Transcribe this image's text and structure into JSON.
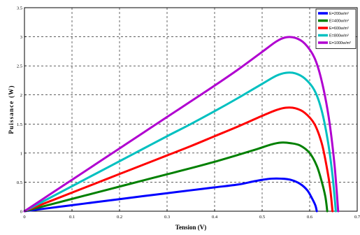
{
  "chart_data": {
    "type": "line",
    "title": "",
    "xlabel": "Tension (V)",
    "ylabel": "Puissance (W)",
    "xlim": [
      0,
      0.7
    ],
    "ylim": [
      0,
      3.5
    ],
    "xticks": [
      "0",
      "0.1",
      "0.2",
      "0.3",
      "0.4",
      "0.5",
      "0.6",
      "0.7"
    ],
    "yticks": [
      "0",
      "0.5",
      "1",
      "1.5",
      "2",
      "2.5",
      "3",
      "3.5"
    ],
    "grid": true,
    "grid_style": "dashed",
    "legend_position": "top-right",
    "series": [
      {
        "name": "E=200w/m²",
        "color": "#0000ff",
        "points": [
          [
            0,
            0
          ],
          [
            0.05,
            0.052
          ],
          [
            0.1,
            0.104
          ],
          [
            0.15,
            0.156
          ],
          [
            0.2,
            0.208
          ],
          [
            0.25,
            0.26
          ],
          [
            0.3,
            0.31
          ],
          [
            0.35,
            0.36
          ],
          [
            0.4,
            0.41
          ],
          [
            0.45,
            0.46
          ],
          [
            0.48,
            0.51
          ],
          [
            0.5,
            0.54
          ],
          [
            0.52,
            0.56
          ],
          [
            0.54,
            0.56
          ],
          [
            0.56,
            0.54
          ],
          [
            0.58,
            0.47
          ],
          [
            0.595,
            0.36
          ],
          [
            0.605,
            0.22
          ],
          [
            0.612,
            0.1
          ],
          [
            0.615,
            0
          ]
        ]
      },
      {
        "name": "E=400w/m²",
        "color": "#008000",
        "points": [
          [
            0,
            0
          ],
          [
            0.05,
            0.106
          ],
          [
            0.1,
            0.212
          ],
          [
            0.15,
            0.318
          ],
          [
            0.2,
            0.424
          ],
          [
            0.25,
            0.53
          ],
          [
            0.3,
            0.635
          ],
          [
            0.35,
            0.74
          ],
          [
            0.4,
            0.85
          ],
          [
            0.45,
            0.97
          ],
          [
            0.49,
            1.07
          ],
          [
            0.52,
            1.15
          ],
          [
            0.54,
            1.18
          ],
          [
            0.56,
            1.17
          ],
          [
            0.58,
            1.13
          ],
          [
            0.6,
            1.0
          ],
          [
            0.615,
            0.78
          ],
          [
            0.625,
            0.52
          ],
          [
            0.633,
            0.25
          ],
          [
            0.637,
            0
          ]
        ]
      },
      {
        "name": "E=600w/m²",
        "color": "#ff0000",
        "points": [
          [
            0,
            0
          ],
          [
            0.05,
            0.16
          ],
          [
            0.1,
            0.32
          ],
          [
            0.15,
            0.48
          ],
          [
            0.2,
            0.64
          ],
          [
            0.25,
            0.8
          ],
          [
            0.3,
            0.96
          ],
          [
            0.35,
            1.12
          ],
          [
            0.4,
            1.29
          ],
          [
            0.45,
            1.46
          ],
          [
            0.5,
            1.64
          ],
          [
            0.53,
            1.74
          ],
          [
            0.55,
            1.78
          ],
          [
            0.57,
            1.77
          ],
          [
            0.59,
            1.69
          ],
          [
            0.61,
            1.5
          ],
          [
            0.625,
            1.18
          ],
          [
            0.635,
            0.8
          ],
          [
            0.643,
            0.4
          ],
          [
            0.648,
            0
          ]
        ]
      },
      {
        "name": "E=800w/m²",
        "color": "#00c0c0",
        "points": [
          [
            0,
            0
          ],
          [
            0.05,
            0.215
          ],
          [
            0.1,
            0.43
          ],
          [
            0.15,
            0.645
          ],
          [
            0.2,
            0.86
          ],
          [
            0.25,
            1.075
          ],
          [
            0.3,
            1.29
          ],
          [
            0.35,
            1.5
          ],
          [
            0.4,
            1.72
          ],
          [
            0.45,
            1.95
          ],
          [
            0.5,
            2.19
          ],
          [
            0.53,
            2.33
          ],
          [
            0.55,
            2.38
          ],
          [
            0.57,
            2.37
          ],
          [
            0.59,
            2.28
          ],
          [
            0.61,
            2.08
          ],
          [
            0.625,
            1.74
          ],
          [
            0.638,
            1.22
          ],
          [
            0.648,
            0.62
          ],
          [
            0.655,
            0
          ]
        ]
      },
      {
        "name": "E=1000w/m²",
        "color": "#b000d0",
        "points": [
          [
            0,
            0
          ],
          [
            0.05,
            0.27
          ],
          [
            0.1,
            0.54
          ],
          [
            0.15,
            0.81
          ],
          [
            0.2,
            1.08
          ],
          [
            0.25,
            1.35
          ],
          [
            0.3,
            1.62
          ],
          [
            0.35,
            1.89
          ],
          [
            0.4,
            2.16
          ],
          [
            0.45,
            2.44
          ],
          [
            0.5,
            2.74
          ],
          [
            0.53,
            2.92
          ],
          [
            0.55,
            2.99
          ],
          [
            0.57,
            2.98
          ],
          [
            0.59,
            2.88
          ],
          [
            0.61,
            2.64
          ],
          [
            0.625,
            2.25
          ],
          [
            0.64,
            1.62
          ],
          [
            0.652,
            0.82
          ],
          [
            0.66,
            0
          ]
        ]
      }
    ]
  }
}
